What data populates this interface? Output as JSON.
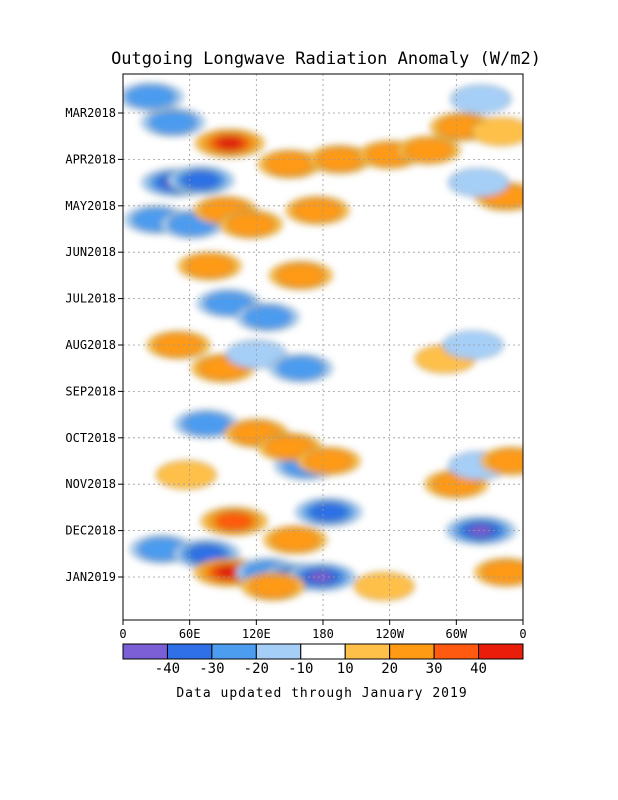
{
  "chart_data": {
    "type": "heatmap",
    "title": "Outgoing Longwave Radiation Anomaly (W/m2)",
    "footer": "Data updated through January 2019",
    "x_ticks": [
      "0",
      "60E",
      "120E",
      "180",
      "120W",
      "60W",
      "0"
    ],
    "y_ticks": [
      "MAR2018",
      "APR2018",
      "MAY2018",
      "JUN2018",
      "JUL2018",
      "AUG2018",
      "SEP2018",
      "OCT2018",
      "NOV2018",
      "DEC2018",
      "JAN2019"
    ],
    "colorbar": {
      "levels": [
        "-40",
        "-30",
        "-20",
        "-10",
        "10",
        "20",
        "30",
        "40"
      ],
      "colors": [
        "#7b5fd6",
        "#2f6fe8",
        "#4c9cf0",
        "#a6cff7",
        "#ffffff",
        "#ffc04a",
        "#ff9a14",
        "#ff5a10",
        "#e81e0a"
      ]
    },
    "anomalies": [
      {
        "lon": 96,
        "month": 0.65,
        "value": 40
      },
      {
        "lon": 25,
        "month": -0.35,
        "value": -25
      },
      {
        "lon": 45,
        "month": 0.2,
        "value": -20
      },
      {
        "lon": 48,
        "month": 1.5,
        "value": -40
      },
      {
        "lon": 70,
        "month": 1.45,
        "value": -30
      },
      {
        "lon": 30,
        "month": 2.3,
        "value": -20
      },
      {
        "lon": 62,
        "month": 2.4,
        "value": -20
      },
      {
        "lon": 92,
        "month": 2.1,
        "value": 20
      },
      {
        "lon": 115,
        "month": 2.4,
        "value": 20
      },
      {
        "lon": 150,
        "month": 1.1,
        "value": 20
      },
      {
        "lon": 195,
        "month": 1.0,
        "value": 20
      },
      {
        "lon": 175,
        "month": 2.1,
        "value": 20
      },
      {
        "lon": 240,
        "month": 0.9,
        "value": 20
      },
      {
        "lon": 275,
        "month": 0.8,
        "value": 20
      },
      {
        "lon": 305,
        "month": 0.3,
        "value": 20
      },
      {
        "lon": 340,
        "month": 0.4,
        "value": 10
      },
      {
        "lon": 345,
        "month": 1.8,
        "value": 20
      },
      {
        "lon": 320,
        "month": 1.5,
        "value": -10
      },
      {
        "lon": 322,
        "month": -0.3,
        "value": -10
      },
      {
        "lon": 78,
        "month": 3.3,
        "value": 20
      },
      {
        "lon": 160,
        "month": 3.5,
        "value": 20
      },
      {
        "lon": 95,
        "month": 4.1,
        "value": -20
      },
      {
        "lon": 130,
        "month": 4.4,
        "value": -20
      },
      {
        "lon": 50,
        "month": 5.0,
        "value": 20
      },
      {
        "lon": 90,
        "month": 5.5,
        "value": 20
      },
      {
        "lon": 120,
        "month": 5.2,
        "value": -10
      },
      {
        "lon": 160,
        "month": 5.5,
        "value": -20
      },
      {
        "lon": 75,
        "month": 6.7,
        "value": -20
      },
      {
        "lon": 120,
        "month": 6.9,
        "value": 20
      },
      {
        "lon": 165,
        "month": 7.6,
        "value": -20
      },
      {
        "lon": 150,
        "month": 7.2,
        "value": 20
      },
      {
        "lon": 185,
        "month": 7.5,
        "value": 20
      },
      {
        "lon": 57,
        "month": 7.8,
        "value": 10
      },
      {
        "lon": 100,
        "month": 8.8,
        "value": 30
      },
      {
        "lon": 185,
        "month": 8.6,
        "value": -30
      },
      {
        "lon": 155,
        "month": 9.2,
        "value": 20
      },
      {
        "lon": 35,
        "month": 9.4,
        "value": -20
      },
      {
        "lon": 75,
        "month": 9.5,
        "value": -30
      },
      {
        "lon": 95,
        "month": 9.9,
        "value": 40
      },
      {
        "lon": 130,
        "month": 9.9,
        "value": -20
      },
      {
        "lon": 155,
        "month": 10.0,
        "value": -30
      },
      {
        "lon": 178,
        "month": 10.0,
        "value": -40
      },
      {
        "lon": 135,
        "month": 10.2,
        "value": 20
      },
      {
        "lon": 322,
        "month": 9.0,
        "value": -40
      },
      {
        "lon": 300,
        "month": 8.0,
        "value": 20
      },
      {
        "lon": 320,
        "month": 7.6,
        "value": -10
      },
      {
        "lon": 350,
        "month": 7.5,
        "value": 20
      },
      {
        "lon": 345,
        "month": 9.9,
        "value": 20
      },
      {
        "lon": 235,
        "month": 10.2,
        "value": 10
      },
      {
        "lon": 290,
        "month": 5.3,
        "value": 10
      },
      {
        "lon": 315,
        "month": 5.0,
        "value": -10
      }
    ]
  }
}
